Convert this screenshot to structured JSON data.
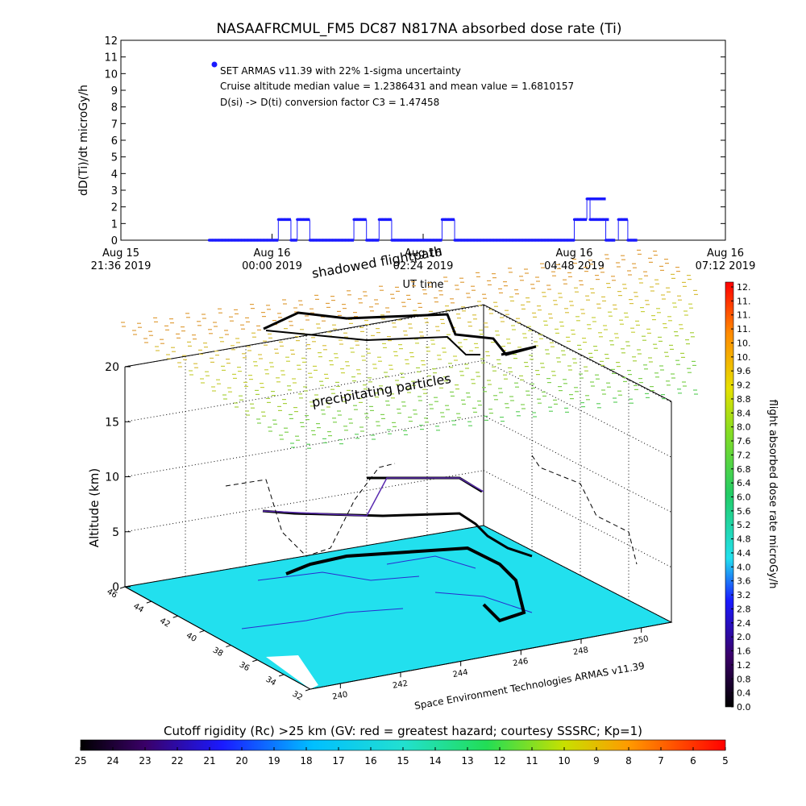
{
  "colors": {
    "ground": "#22e0ee",
    "flight_track": "#000000",
    "data_points": "#1a1aff",
    "shadow_line": "#5a2bb0"
  },
  "chart_data": [
    {
      "type": "scatter",
      "title": "NASAAFRCMUL_FM5 DC87 N817NA absorbed dose rate (Ti)",
      "ylabel": "dD(Ti)/dt microGy/h",
      "xlabel": "UT time",
      "ylim": [
        0,
        12
      ],
      "y_ticks": [
        "0",
        "1",
        "2",
        "3",
        "4",
        "5",
        "6",
        "7",
        "8",
        "9",
        "10",
        "11",
        "12"
      ],
      "x_ticks": [
        {
          "date": "Aug 15",
          "time": "21:36 2019"
        },
        {
          "date": "Aug 16",
          "time": "00:00 2019"
        },
        {
          "date": "Aug 16",
          "time": "02:24 2019"
        },
        {
          "date": "Aug 16",
          "time": "04:48 2019"
        },
        {
          "date": "Aug 16",
          "time": "07:12 2019"
        }
      ],
      "x_unit": "hours since Aug 15 21:36 UT",
      "xlim": [
        0,
        9.6
      ],
      "annotations": [
        "SET ARMAS v11.39 with 22% 1-sigma uncertainty",
        "Cruise altitude median value = 1.2386431 and mean value = 1.6810157",
        "D(si) -> D(ti) conversion factor C3 = 1.47458"
      ],
      "segments": [
        {
          "x0": 1.4,
          "x1": 2.5,
          "y": 0
        },
        {
          "x0": 2.5,
          "x1": 2.7,
          "y": 1.24
        },
        {
          "x0": 2.7,
          "x1": 2.8,
          "y": 0
        },
        {
          "x0": 2.8,
          "x1": 3.0,
          "y": 1.24
        },
        {
          "x0": 3.0,
          "x1": 3.7,
          "y": 0
        },
        {
          "x0": 3.7,
          "x1": 3.9,
          "y": 1.24
        },
        {
          "x0": 3.9,
          "x1": 4.1,
          "y": 0
        },
        {
          "x0": 4.1,
          "x1": 4.3,
          "y": 1.24
        },
        {
          "x0": 4.3,
          "x1": 5.1,
          "y": 0
        },
        {
          "x0": 5.1,
          "x1": 5.3,
          "y": 1.24
        },
        {
          "x0": 5.3,
          "x1": 7.2,
          "y": 0
        },
        {
          "x0": 7.2,
          "x1": 7.4,
          "y": 1.24
        },
        {
          "x0": 7.4,
          "x1": 7.7,
          "y": 2.48
        },
        {
          "x0": 7.45,
          "x1": 7.75,
          "y": 1.24
        },
        {
          "x0": 7.7,
          "x1": 7.85,
          "y": 0
        },
        {
          "x0": 7.9,
          "x1": 8.05,
          "y": 1.24
        },
        {
          "x0": 8.05,
          "x1": 8.2,
          "y": 0
        }
      ]
    },
    {
      "type": "scatter",
      "zlabel": "Altitude (km)",
      "z_ticks": [
        "0",
        "5",
        "10",
        "15",
        "20"
      ],
      "lat_ticks": [
        "46",
        "44",
        "42",
        "40",
        "38",
        "36",
        "34",
        "32"
      ],
      "lon_ticks": [
        "240",
        "242",
        "244",
        "246",
        "248",
        "250"
      ],
      "labels": {
        "shadow": "shadowed flightpath",
        "particles": "precipitating particles",
        "credit": "Space Environment Technologies ARMAS v11.39"
      },
      "colorbar": {
        "label": "flight absorbed dose rate microGy/h",
        "ticks": [
          "12.",
          "11.",
          "11.",
          "11.",
          "10.",
          "10.",
          "9.6",
          "9.2",
          "8.8",
          "8.4",
          "8.0",
          "7.6",
          "7.2",
          "6.8",
          "6.4",
          "6.0",
          "5.6",
          "5.2",
          "4.8",
          "4.4",
          "4.0",
          "3.6",
          "3.2",
          "2.8",
          "2.4",
          "2.0",
          "1.6",
          "1.2",
          "0.8",
          "0.4",
          "0.0"
        ]
      }
    },
    {
      "type": "heatmap",
      "title": "Cutoff rigidity (Rc) >25 km (GV: red = greatest hazard; courtesy SSSRC; Kp=1)",
      "ticks": [
        "25",
        "24",
        "23",
        "22",
        "21",
        "20",
        "19",
        "18",
        "17",
        "16",
        "15",
        "14",
        "13",
        "12",
        "11",
        "10",
        "9",
        "8",
        "7",
        "6",
        "5"
      ]
    }
  ]
}
